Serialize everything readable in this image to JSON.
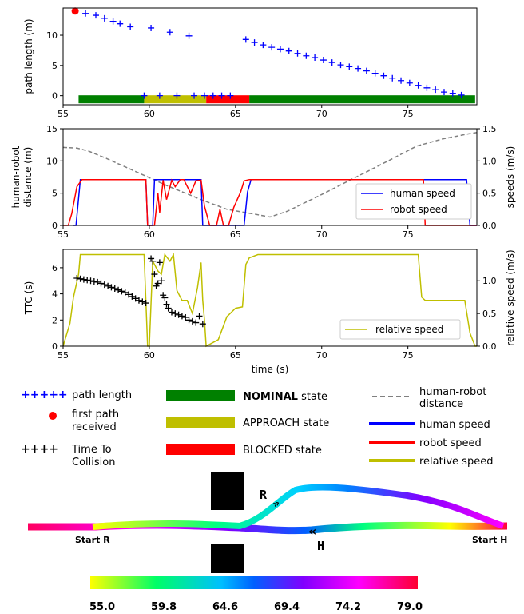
{
  "chart_data": [
    {
      "type": "scatter",
      "ylabel": "path length (m)",
      "xlim": [
        55,
        79
      ],
      "ylim": [
        -1.5,
        14.5
      ],
      "xticks": [
        "55",
        "60",
        "65",
        "70",
        "75"
      ],
      "yticks": [
        "0",
        "5",
        "10"
      ],
      "series": [
        {
          "name": "path length",
          "marker": "+",
          "color": "#0000ff",
          "x": [
            56.3,
            56.9,
            57.4,
            57.9,
            58.3,
            58.9,
            60.1,
            61.2,
            62.3,
            65.6,
            66.1,
            66.6,
            67.1,
            67.6,
            68.1,
            68.6,
            69.1,
            69.6,
            70.1,
            70.6,
            71.1,
            71.6,
            72.1,
            72.6,
            73.1,
            73.6,
            74.1,
            74.6,
            75.1,
            75.6,
            76.1,
            76.6,
            77.1,
            77.6,
            78.1,
            59.7,
            60.6,
            61.6,
            62.6,
            63.2,
            63.7,
            64.2,
            64.7
          ],
          "y": [
            13.6,
            13.3,
            12.8,
            12.3,
            11.9,
            11.4,
            11.2,
            10.5,
            9.9,
            9.3,
            8.8,
            8.4,
            8.0,
            7.7,
            7.4,
            7.0,
            6.6,
            6.3,
            5.9,
            5.5,
            5.1,
            4.8,
            4.5,
            4.1,
            3.7,
            3.3,
            2.9,
            2.5,
            2.1,
            1.7,
            1.3,
            1.0,
            0.6,
            0.4,
            0.1,
            0,
            0,
            0,
            0,
            0,
            0,
            0,
            0
          ]
        },
        {
          "name": "first path received",
          "marker": "o",
          "color": "#ff0000",
          "x": [
            55.7
          ],
          "y": [
            14.0
          ]
        }
      ],
      "state_bar": {
        "y": -0.6,
        "segments": [
          {
            "state": "NOMINAL",
            "from": 55.9,
            "to": 59.7,
            "color": "#008000"
          },
          {
            "state": "APPROACH",
            "from": 59.7,
            "to": 63.3,
            "color": "#bfbf00"
          },
          {
            "state": "BLOCKED",
            "from": 63.3,
            "to": 65.8,
            "color": "#ff0000"
          },
          {
            "state": "NOMINAL",
            "from": 65.8,
            "to": 78.9,
            "color": "#008000"
          }
        ]
      }
    },
    {
      "type": "line",
      "ylabel": "human-robot\ndistance (m)",
      "ylabel_right": "speeds (m/s)",
      "xlim": [
        55,
        79
      ],
      "ylim": [
        0,
        15
      ],
      "ylim_right": [
        0,
        1.5
      ],
      "xticks": [
        "55",
        "60",
        "65",
        "70",
        "75"
      ],
      "yticks": [
        "0",
        "5",
        "10",
        "15"
      ],
      "yticks_right": [
        "0.0",
        "0.5",
        "1.0",
        "1.5"
      ],
      "legend_position": "lower-right",
      "series": [
        {
          "name": "human-robot distance",
          "axis": "left",
          "style": "dashed",
          "color": "#808080",
          "x": [
            55,
            55.8,
            56.5,
            57.5,
            59,
            61,
            63,
            64.5,
            66,
            67,
            68,
            70,
            72,
            74,
            75.5,
            77,
            78.5,
            79
          ],
          "y": [
            12.1,
            12.0,
            11.5,
            10.4,
            8.6,
            6.2,
            4.0,
            2.5,
            1.8,
            1.3,
            2.2,
            4.8,
            7.5,
            10.2,
            12.3,
            13.4,
            14.2,
            14.4
          ]
        },
        {
          "name": "human speed",
          "axis": "right",
          "style": "solid",
          "color": "#0000ff",
          "x": [
            55.6,
            55.75,
            56.0,
            59.8,
            59.9,
            60.2,
            60.3,
            63.0,
            63.1,
            65.5,
            65.7,
            65.9,
            78.4,
            78.6,
            79
          ],
          "y": [
            0.0,
            0.0,
            0.71,
            0.71,
            0.0,
            0.0,
            0.71,
            0.71,
            0.0,
            0.0,
            0.52,
            0.71,
            0.71,
            0.0,
            0.0
          ]
        },
        {
          "name": "robot speed",
          "axis": "right",
          "style": "solid",
          "color": "#ff0000",
          "x": [
            55,
            55.3,
            55.5,
            55.8,
            56.1,
            59.8,
            59.9,
            60.3,
            60.5,
            60.6,
            60.8,
            61.0,
            61.3,
            61.5,
            61.8,
            62.0,
            62.4,
            62.7,
            63.0,
            63.2,
            63.5,
            63.9,
            64.1,
            64.3,
            64.6,
            64.9,
            65.3,
            65.5,
            65.8,
            66.5,
            75.9,
            76.0,
            79
          ],
          "y": [
            0.0,
            0.0,
            0.18,
            0.6,
            0.71,
            0.71,
            0.0,
            0.0,
            0.5,
            0.2,
            0.7,
            0.4,
            0.7,
            0.6,
            0.71,
            0.71,
            0.5,
            0.69,
            0.7,
            0.3,
            0.0,
            0.0,
            0.25,
            0.0,
            0.0,
            0.28,
            0.52,
            0.69,
            0.71,
            0.71,
            0.71,
            0.0,
            0.0
          ]
        }
      ]
    },
    {
      "type": "line",
      "xlabel": "time (s)",
      "ylabel": "TTC (s)",
      "ylabel_right": "relative speed (m/s)",
      "xlim": [
        55,
        79
      ],
      "ylim": [
        0,
        7.4
      ],
      "ylim_right": [
        0,
        1.48
      ],
      "xticks": [
        "55",
        "60",
        "65",
        "70",
        "75"
      ],
      "yticks": [
        "0",
        "2",
        "4",
        "6"
      ],
      "yticks_right": [
        "0.0",
        "0.5",
        "1.0"
      ],
      "legend_position": "lower-right",
      "series": [
        {
          "name": "relative speed",
          "axis": "right",
          "style": "solid",
          "color": "#bfbf00",
          "x": [
            55,
            55.4,
            55.6,
            55.9,
            56.0,
            59.7,
            59.8,
            59.9,
            60.0,
            60.2,
            60.5,
            60.7,
            60.9,
            61.2,
            61.4,
            61.6,
            61.9,
            62.2,
            62.5,
            62.8,
            63.0,
            63.1,
            63.2,
            63.3,
            64.0,
            64.5,
            65.0,
            65.4,
            65.6,
            65.8,
            66.3,
            75.6,
            75.8,
            76.0,
            78.3,
            78.6,
            78.9,
            79
          ],
          "y": [
            0.0,
            0.35,
            0.75,
            1.1,
            1.4,
            1.4,
            0.7,
            0.0,
            0.0,
            1.3,
            1.15,
            1.1,
            1.4,
            1.3,
            1.4,
            0.85,
            0.7,
            0.7,
            0.5,
            0.9,
            1.28,
            0.7,
            0.4,
            0.0,
            0.1,
            0.45,
            0.58,
            0.6,
            1.25,
            1.35,
            1.4,
            1.4,
            0.75,
            0.7,
            0.7,
            0.2,
            0.0,
            0.0
          ]
        },
        {
          "name": "Time To Collision",
          "axis": "left",
          "style": "marker",
          "marker": "+",
          "color": "#000000",
          "x": [
            55.8,
            56.0,
            56.2,
            56.4,
            56.6,
            56.8,
            57.0,
            57.2,
            57.4,
            57.6,
            57.8,
            58.0,
            58.2,
            58.4,
            58.6,
            58.8,
            59.0,
            59.2,
            59.4,
            59.6,
            59.8,
            60.1,
            60.2,
            60.3,
            60.4,
            60.5,
            60.6,
            60.7,
            60.8,
            60.9,
            61.0,
            61.1,
            61.3,
            61.5,
            61.7,
            61.9,
            62.1,
            62.3,
            62.5,
            62.7,
            62.9,
            63.1
          ],
          "y": [
            5.2,
            5.15,
            5.1,
            5.05,
            5.0,
            4.95,
            4.9,
            4.8,
            4.7,
            4.6,
            4.5,
            4.4,
            4.3,
            4.2,
            4.1,
            3.95,
            3.8,
            3.65,
            3.5,
            3.4,
            3.3,
            6.7,
            6.5,
            5.5,
            4.6,
            4.8,
            6.4,
            5.0,
            3.9,
            3.7,
            3.2,
            2.9,
            2.6,
            2.5,
            2.4,
            2.3,
            2.2,
            2.0,
            1.9,
            1.8,
            2.3,
            1.7
          ]
        }
      ]
    }
  ],
  "legend": {
    "items": [
      {
        "key": "path_length",
        "label": "path length"
      },
      {
        "key": "first_path",
        "label": "first path\nreceived"
      },
      {
        "key": "ttc",
        "label": "Time To\nCollision"
      },
      {
        "key": "nominal",
        "label": "NOMINAL state"
      },
      {
        "key": "approach",
        "label": "APPROACH state"
      },
      {
        "key": "blocked",
        "label": "BLOCKED state"
      },
      {
        "key": "distance",
        "label": "human-robot\ndistance"
      },
      {
        "key": "human_speed",
        "label": "human speed"
      },
      {
        "key": "robot_speed",
        "label": "robot speed"
      },
      {
        "key": "relative_speed",
        "label": "relative speed"
      }
    ]
  },
  "trajectory_map": {
    "robot_label": "R",
    "human_label": "H",
    "start_robot_label": "Start R",
    "start_human_label": "Start H",
    "colorbar_ticks": [
      "55.0",
      "59.8",
      "64.6",
      "69.4",
      "74.2",
      "79.0"
    ],
    "time_range": [
      55.0,
      79.0
    ]
  }
}
